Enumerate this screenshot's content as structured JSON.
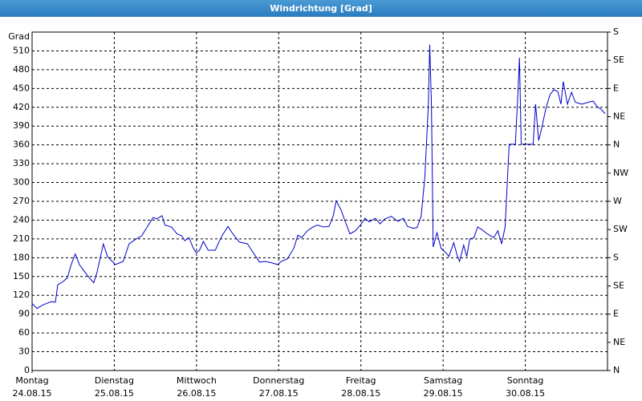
{
  "chart_data": {
    "type": "line",
    "title": "Windrichtung [Grad]",
    "y_label": "Grad",
    "color": "#0000cc",
    "grid": true,
    "xlim": [
      0,
      168
    ],
    "xticks": [
      {
        "value": 0,
        "label": "Montag",
        "date": "24.08.15"
      },
      {
        "value": 24,
        "label": "Dienstag",
        "date": "25.08.15"
      },
      {
        "value": 48,
        "label": "Mittwoch",
        "date": "26.08.15"
      },
      {
        "value": 72,
        "label": "Donnerstag",
        "date": "27.08.15"
      },
      {
        "value": 96,
        "label": "Freitag",
        "date": "28.08.15"
      },
      {
        "value": 120,
        "label": "Samstag",
        "date": "29.08.15"
      },
      {
        "value": 144,
        "label": "Sonntag",
        "date": "30.08.15"
      }
    ],
    "ylim": [
      0,
      540
    ],
    "yticks": [
      0,
      30,
      60,
      90,
      120,
      150,
      180,
      210,
      240,
      270,
      300,
      330,
      360,
      390,
      420,
      450,
      480,
      510
    ],
    "y2lim": [
      0,
      540
    ],
    "y2ticks": [
      {
        "value": 0,
        "label": "N"
      },
      {
        "value": 45,
        "label": "NE"
      },
      {
        "value": 90,
        "label": "E"
      },
      {
        "value": 135,
        "label": "SE"
      },
      {
        "value": 180,
        "label": "S"
      },
      {
        "value": 225,
        "label": "SW"
      },
      {
        "value": 270,
        "label": "W"
      },
      {
        "value": 315,
        "label": "NW"
      },
      {
        "value": 360,
        "label": "N"
      },
      {
        "value": 405,
        "label": "NE"
      },
      {
        "value": 450,
        "label": "E"
      },
      {
        "value": 495,
        "label": "SE"
      },
      {
        "value": 540,
        "label": "S"
      }
    ],
    "x": [
      0,
      1.4,
      3.3,
      5.6,
      6.8,
      7.5,
      9.1,
      10.3,
      11.4,
      12.6,
      13.8,
      16.1,
      18,
      18.9,
      20.8,
      22,
      24.3,
      26.6,
      28.3,
      30.1,
      32,
      33.6,
      35.3,
      36.4,
      37.9,
      38.8,
      40.7,
      42.3,
      43.7,
      44.6,
      45.8,
      47,
      47.9,
      48.8,
      50,
      51.4,
      53.5,
      54.7,
      55.8,
      57.2,
      58.6,
      60.5,
      62.9,
      64.7,
      66.4,
      68,
      69.9,
      71.7,
      72.7,
      74.5,
      76.4,
      77.6,
      78.7,
      80.4,
      82,
      83.4,
      85,
      86.7,
      87.9,
      88.8,
      90.2,
      91.4,
      92.8,
      94.4,
      96,
      97.2,
      98.4,
      100.2,
      101.6,
      103,
      104.9,
      106.8,
      108.4,
      109.6,
      111.2,
      112.4,
      113.6,
      114.7,
      115.7,
      116.1,
      116.6,
      117.1,
      118.2,
      119.4,
      120.8,
      121.7,
      123.1,
      124.1,
      124.8,
      126,
      126.9,
      127.8,
      129,
      130.1,
      131.3,
      132.9,
      134.8,
      136,
      137.1,
      138.1,
      139.3,
      141.1,
      141.8,
      142.3,
      142.8,
      144.6,
      146.3,
      147,
      147.9,
      148.8,
      150,
      151.2,
      152.3,
      153.5,
      154.4,
      155.1,
      156.3,
      157.5,
      158.6,
      160.5,
      162.4,
      163.8,
      165,
      166.1,
      167.3
    ],
    "values": [
      107,
      99,
      105,
      110,
      109,
      137,
      142,
      148,
      169,
      186,
      169,
      152,
      140,
      156,
      202,
      182,
      169,
      174,
      202,
      209,
      215,
      229,
      244,
      242,
      247,
      232,
      229,
      218,
      215,
      207,
      212,
      196,
      188,
      191,
      206,
      192,
      192,
      207,
      218,
      230,
      218,
      205,
      202,
      187,
      173,
      174,
      172,
      169,
      174,
      178,
      195,
      216,
      212,
      223,
      229,
      232,
      229,
      230,
      246,
      271,
      256,
      238,
      218,
      223,
      233,
      243,
      237,
      243,
      234,
      242,
      246,
      238,
      243,
      230,
      227,
      228,
      246,
      310,
      425,
      520,
      425,
      197,
      220,
      195,
      188,
      182,
      204,
      184,
      174,
      200,
      182,
      210,
      212,
      229,
      225,
      218,
      212,
      223,
      202,
      229,
      361,
      361,
      438,
      499,
      361,
      361,
      361,
      425,
      367,
      387,
      418,
      440,
      448,
      445,
      425,
      461,
      425,
      444,
      428,
      425,
      428,
      430,
      421,
      417,
      410
    ]
  }
}
